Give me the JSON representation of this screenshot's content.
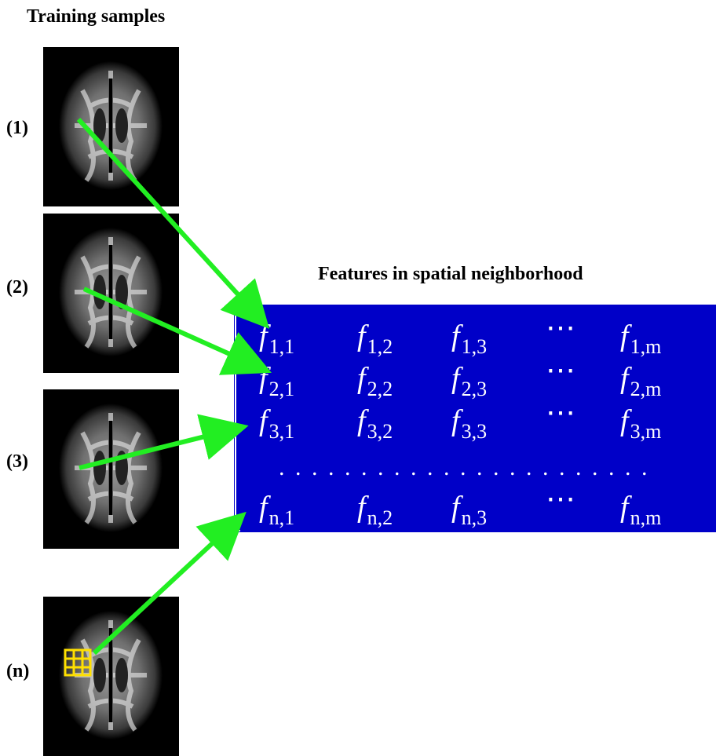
{
  "header": {
    "title": "Training samples"
  },
  "samples": [
    {
      "label": "(1)"
    },
    {
      "label": "(2)"
    },
    {
      "label": "(3)"
    },
    {
      "label": "(n)"
    }
  ],
  "matrix": {
    "title": "Features in spatial neighborhood",
    "rows": [
      [
        {
          "base": "f",
          "sub": "1,1"
        },
        {
          "base": "f",
          "sub": "1,2"
        },
        {
          "base": "f",
          "sub": "1,3"
        },
        "⋯",
        {
          "base": "f",
          "sub": "1,m"
        }
      ],
      [
        {
          "base": "f",
          "sub": "2,1"
        },
        {
          "base": "f",
          "sub": "2,2"
        },
        {
          "base": "f",
          "sub": "2,3"
        },
        "⋯",
        {
          "base": "f",
          "sub": "2,m"
        }
      ],
      [
        {
          "base": "f",
          "sub": "3,1"
        },
        {
          "base": "f",
          "sub": "3,2"
        },
        {
          "base": "f",
          "sub": "3,3"
        },
        "⋯",
        {
          "base": "f",
          "sub": "3,m"
        }
      ]
    ],
    "ellipsis_row": ". . . . . . . . . . . . . . . . . . . . . . .",
    "last_row": [
      {
        "base": "f",
        "sub": "n,1"
      },
      {
        "base": "f",
        "sub": "n,2"
      },
      {
        "base": "f",
        "sub": "n,3"
      },
      "⋯",
      {
        "base": "f",
        "sub": "n,m"
      }
    ]
  }
}
